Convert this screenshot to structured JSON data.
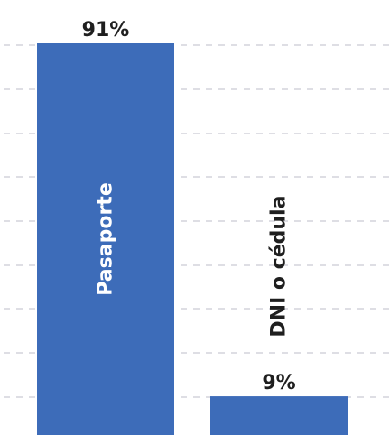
{
  "chart_data": {
    "type": "bar",
    "title": "",
    "xlabel": "",
    "ylabel": "",
    "categories": [
      "Pasaporte",
      "DNI o cédula"
    ],
    "values": [
      91,
      9
    ],
    "value_labels": [
      "91%",
      "9%"
    ],
    "ylim": [
      0,
      91
    ],
    "grid": true,
    "bar_color": "#3d6cb9",
    "grid_color": "#d3d3dc"
  }
}
